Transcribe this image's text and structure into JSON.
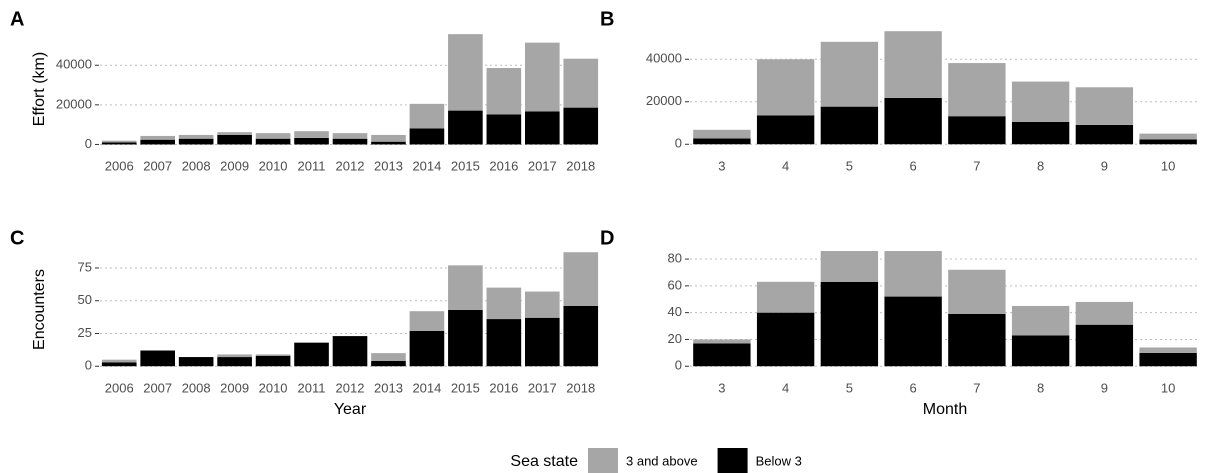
{
  "chart_data": [
    {
      "type": "bar",
      "panel": "A",
      "ylabel": "Effort (km)",
      "categories": [
        "2006",
        "2007",
        "2008",
        "2009",
        "2010",
        "2011",
        "2012",
        "2013",
        "2014",
        "2015",
        "2016",
        "2017",
        "2018"
      ],
      "series": [
        {
          "name": "3 and above",
          "color": "#a6a6a6",
          "values": [
            900,
            1900,
            1900,
            1400,
            2800,
            3400,
            2800,
            3400,
            12400,
            38600,
            23400,
            34700,
            24700
          ]
        },
        {
          "name": "Below 3",
          "color": "#000000",
          "values": [
            1000,
            2400,
            2900,
            4800,
            2900,
            3300,
            2900,
            1400,
            8100,
            17100,
            15200,
            16700,
            18600
          ]
        }
      ],
      "ylim": [
        -2800,
        58800
      ],
      "yticks": [
        0,
        20000,
        40000
      ],
      "grid": true,
      "stacked": true
    },
    {
      "type": "bar",
      "panel": "B",
      "categories": [
        "3",
        "4",
        "5",
        "6",
        "7",
        "8",
        "9",
        "10"
      ],
      "series": [
        {
          "color": "#a6a6a6",
          "values": [
            4100,
            26400,
            30500,
            31400,
            25000,
            19000,
            17700,
            2700
          ]
        },
        {
          "color": "#000000",
          "values": [
            2700,
            13600,
            17700,
            21800,
            13200,
            10500,
            9100,
            2300
          ]
        }
      ],
      "ylim": [
        -2700,
        54700
      ],
      "yticks": [
        0,
        20000,
        40000
      ],
      "grid": true,
      "stacked": true
    },
    {
      "type": "bar",
      "panel": "C",
      "ylabel": "Encounters",
      "xlabel": "Year",
      "categories": [
        "2006",
        "2007",
        "2008",
        "2009",
        "2010",
        "2011",
        "2012",
        "2013",
        "2014",
        "2015",
        "2016",
        "2017",
        "2018"
      ],
      "series": [
        {
          "color": "#a6a6a6",
          "values": [
            2,
            0,
            0,
            2,
            1,
            0,
            0,
            6,
            15,
            34,
            24,
            20,
            41
          ]
        },
        {
          "color": "#000000",
          "values": [
            3,
            12,
            7,
            7,
            8,
            18,
            23,
            4,
            27,
            43,
            36,
            37,
            46
          ]
        }
      ],
      "ylim": [
        -4.4,
        91
      ],
      "yticks": [
        0,
        25,
        50,
        75
      ],
      "grid": true,
      "stacked": true
    },
    {
      "type": "bar",
      "panel": "D",
      "xlabel": "Month",
      "categories": [
        "3",
        "4",
        "5",
        "6",
        "7",
        "8",
        "9",
        "10"
      ],
      "series": [
        {
          "color": "#a6a6a6",
          "values": [
            3,
            23,
            23,
            34,
            33,
            22,
            17,
            4
          ]
        },
        {
          "color": "#000000",
          "values": [
            17,
            40,
            63,
            52,
            39,
            23,
            31,
            10
          ]
        }
      ],
      "ylim": [
        -4.3,
        89
      ],
      "yticks": [
        0,
        20,
        40,
        60,
        80
      ],
      "grid": true,
      "stacked": true
    }
  ],
  "legend": {
    "title": "Sea state"
  }
}
